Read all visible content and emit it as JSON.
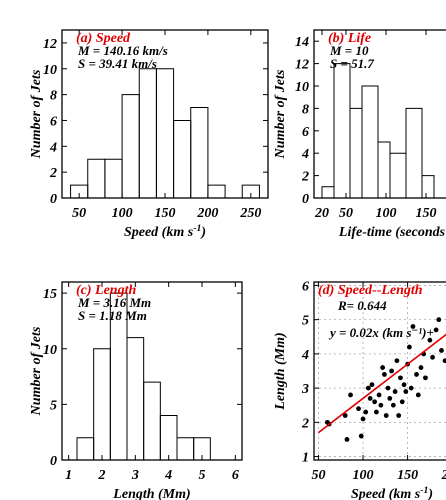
{
  "chart_data": [
    {
      "type": "bar",
      "panel": "(a)",
      "title": "Speed",
      "annotations": [
        "M = 140.16 km/s",
        "S = 39.41 km/s"
      ],
      "xlabel": "Speed (km s⁻¹)",
      "ylabel": "Number of Jets",
      "bin_edges": [
        40,
        60,
        80,
        100,
        120,
        140,
        160,
        180,
        200,
        220,
        240,
        260
      ],
      "values": [
        1,
        3,
        3,
        8,
        10,
        10,
        6,
        7,
        1,
        0,
        1
      ],
      "xlim": [
        30,
        270
      ],
      "ylim": [
        0,
        13
      ],
      "xticks": [
        "50",
        "100",
        "150",
        "200",
        "250"
      ],
      "yticks": [
        "0",
        "2",
        "4",
        "6",
        "8",
        "10",
        "12"
      ]
    },
    {
      "type": "bar",
      "panel": "(b)",
      "title": "Life",
      "annotations": [
        "M = 10",
        "S = 51.7"
      ],
      "xlabel": "Life-time (seconds",
      "ylabel": "Number of Jets",
      "bin_edges": [
        20,
        35,
        55,
        70,
        90,
        105,
        125,
        145,
        160,
        180
      ],
      "values": [
        1,
        12,
        8,
        10,
        5,
        4,
        8,
        2,
        0
      ],
      "xlim": [
        10,
        205
      ],
      "ylim": [
        0,
        15
      ],
      "xticks": [
        "50",
        "100",
        "150",
        "20"
      ],
      "yticks": [
        "0",
        "2",
        "4",
        "6",
        "8",
        "10",
        "12",
        "14"
      ]
    },
    {
      "type": "bar",
      "panel": "(c)",
      "title": "Length",
      "annotations": [
        "M = 3.16 Mm",
        "S = 1.18 Mm"
      ],
      "xlabel": "Length (Mm)",
      "ylabel": "Number of Jets",
      "bin_edges": [
        1.25,
        1.75,
        2.25,
        2.75,
        3.25,
        3.75,
        4.25,
        4.75,
        5.25,
        5.75
      ],
      "values": [
        2,
        10,
        15,
        11,
        7,
        4,
        2,
        2,
        0
      ],
      "xlim": [
        0.8,
        6.2
      ],
      "ylim": [
        0,
        16
      ],
      "xticks": [
        "1",
        "2",
        "3",
        "4",
        "5",
        "6"
      ],
      "yticks": [
        "0",
        "5",
        "10",
        "15"
      ]
    },
    {
      "type": "scatter",
      "panel": "(d)",
      "title": "Speed--Length",
      "annotations": [
        "R= 0.644",
        "y = 0.02x (km s⁻¹)+"
      ],
      "xlabel": "Speed (km s⁻¹)",
      "ylabel": "Length (Mm)",
      "xlim": [
        45,
        220
      ],
      "ylim": [
        0.9,
        6.1
      ],
      "grid": true,
      "xticks": [
        "50",
        "100",
        "150",
        "200"
      ],
      "yticks": [
        "1",
        "2",
        "3",
        "4",
        "5",
        "6"
      ],
      "fit": {
        "slope": 0.02,
        "intercept": 0.7
      },
      "points": [
        [
          60,
          2.0
        ],
        [
          62,
          1.95
        ],
        [
          80,
          2.2
        ],
        [
          82,
          1.5
        ],
        [
          86,
          2.8
        ],
        [
          95,
          2.4
        ],
        [
          98,
          1.6
        ],
        [
          100,
          2.1
        ],
        [
          103,
          2.3
        ],
        [
          106,
          3.0
        ],
        [
          108,
          2.7
        ],
        [
          110,
          3.1
        ],
        [
          113,
          2.6
        ],
        [
          115,
          2.3
        ],
        [
          118,
          2.8
        ],
        [
          120,
          2.5
        ],
        [
          122,
          3.6
        ],
        [
          124,
          3.4
        ],
        [
          126,
          2.2
        ],
        [
          128,
          3.0
        ],
        [
          130,
          2.7
        ],
        [
          132,
          3.5
        ],
        [
          134,
          2.5
        ],
        [
          136,
          2.9
        ],
        [
          138,
          3.8
        ],
        [
          140,
          2.2
        ],
        [
          142,
          3.3
        ],
        [
          144,
          2.6
        ],
        [
          146,
          3.1
        ],
        [
          148,
          2.9
        ],
        [
          150,
          3.7
        ],
        [
          152,
          4.2
        ],
        [
          154,
          3.0
        ],
        [
          156,
          4.8
        ],
        [
          160,
          3.4
        ],
        [
          162,
          2.8
        ],
        [
          165,
          3.6
        ],
        [
          168,
          4.0
        ],
        [
          170,
          3.3
        ],
        [
          175,
          4.4
        ],
        [
          178,
          3.9
        ],
        [
          182,
          4.7
        ],
        [
          185,
          5.0
        ],
        [
          188,
          4.1
        ],
        [
          192,
          3.8
        ],
        [
          196,
          4.5
        ],
        [
          200,
          4.2
        ]
      ]
    }
  ]
}
